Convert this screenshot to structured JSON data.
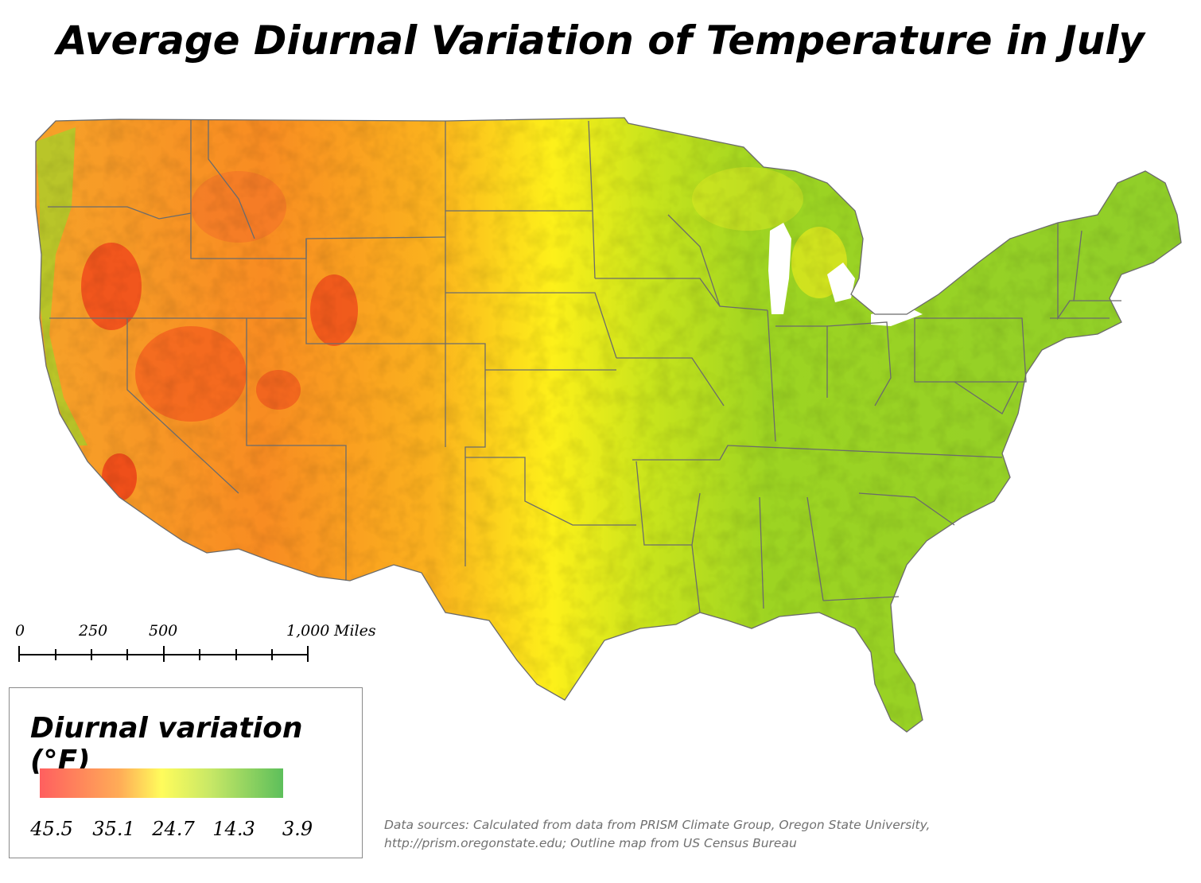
{
  "title": "Average Diurnal Variation of Temperature in July",
  "scale_bar": {
    "labels": [
      "0",
      "250",
      "500",
      "1,000"
    ],
    "unit": "Miles"
  },
  "legend": {
    "title": "Diurnal variation (°F)",
    "ticks": [
      "45.5",
      "35.1",
      "24.7",
      "14.3",
      "3.9"
    ],
    "colors": [
      "#ff5f5f",
      "#ffad57",
      "#fffc5c",
      "#c8e866",
      "#5dbf5b"
    ]
  },
  "sources": {
    "line1": "Data sources: Calculated from data from PRISM Climate Group, Oregon State University,",
    "line2": "http://prism.oregonstate.edu; Outline map from US Census Bureau"
  },
  "map": {
    "region": "Contiguous United States",
    "fill_colors": {
      "hot": "#f0401c",
      "warm": "#fb9a2a",
      "mid": "#fdf21a",
      "cool": "#a8d91c",
      "low": "#86c82a"
    },
    "border_color": "#6b6b6b"
  }
}
